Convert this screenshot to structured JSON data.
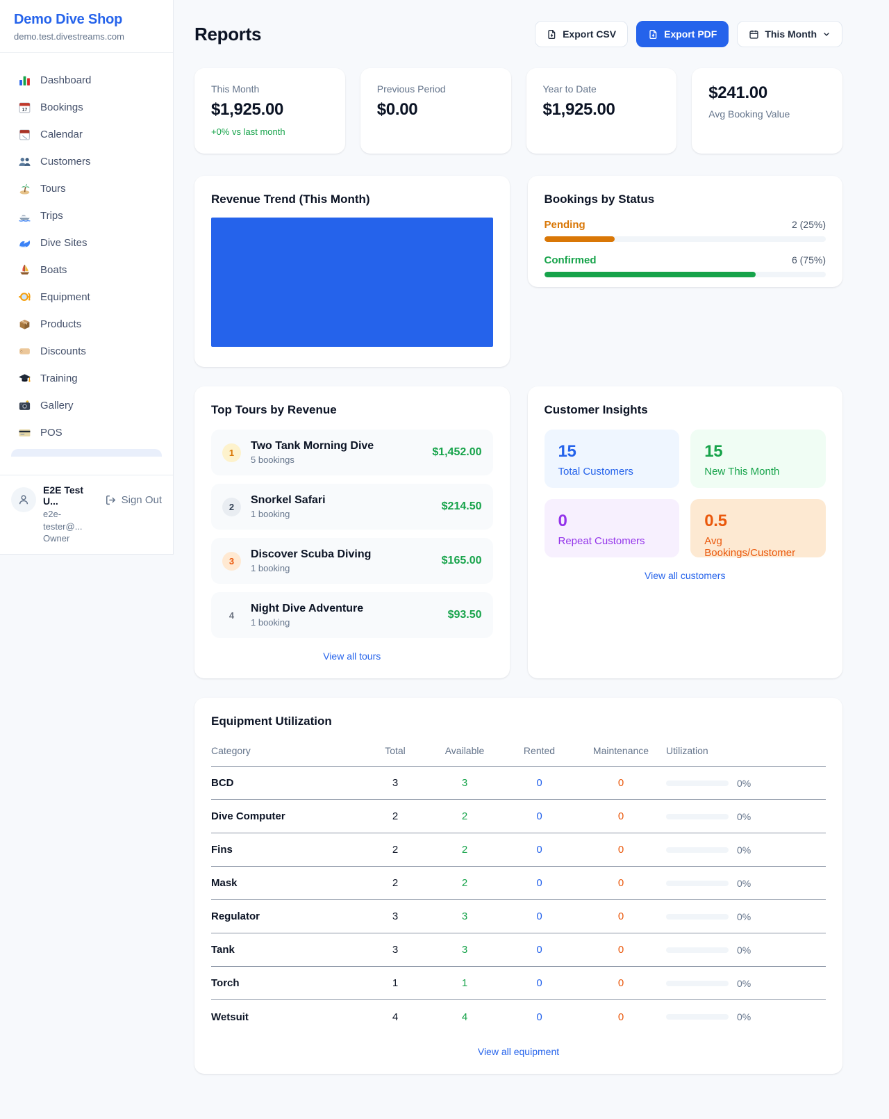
{
  "sidebar": {
    "brand": {
      "name": "Demo Dive Shop",
      "domain": "demo.test.divestreams.com"
    },
    "items": [
      {
        "icon": "bar-chart-icon",
        "label": "Dashboard"
      },
      {
        "icon": "calendar-date-icon",
        "label": "Bookings"
      },
      {
        "icon": "tear-calendar-icon",
        "label": "Calendar"
      },
      {
        "icon": "users-icon",
        "label": "Customers"
      },
      {
        "icon": "island-icon",
        "label": "Tours"
      },
      {
        "icon": "speedboat-icon",
        "label": "Trips"
      },
      {
        "icon": "wave-icon",
        "label": "Dive Sites"
      },
      {
        "icon": "sailboat-icon",
        "label": "Boats"
      },
      {
        "icon": "dive-mask-icon",
        "label": "Equipment"
      },
      {
        "icon": "package-icon",
        "label": "Products"
      },
      {
        "icon": "tag-icon",
        "label": "Discounts"
      },
      {
        "icon": "graduation-cap-icon",
        "label": "Training"
      },
      {
        "icon": "camera-icon",
        "label": "Gallery"
      },
      {
        "icon": "credit-card-icon",
        "label": "POS"
      }
    ],
    "user": {
      "name": "E2E Test U...",
      "email": "e2e-tester@...",
      "role": "Owner",
      "sign_out": "Sign Out"
    }
  },
  "header": {
    "title": "Reports",
    "export_csv": "Export CSV",
    "export_pdf": "Export PDF",
    "period": "This Month"
  },
  "stats": [
    {
      "label": "This Month",
      "value": "$1,925.00",
      "delta": "+0% vs last month"
    },
    {
      "label": "Previous Period",
      "value": "$0.00"
    },
    {
      "label": "Year to Date",
      "value": "$1,925.00"
    },
    {
      "label": "Avg Booking Value",
      "value": "$241.00"
    }
  ],
  "revenue_trend": {
    "title": "Revenue Trend (This Month)",
    "type": "bar",
    "bars_visible": 1,
    "bar_color": "#2563eb"
  },
  "bookings_by_status": {
    "title": "Bookings by Status",
    "rows": [
      {
        "label": "Pending",
        "count": "2 (25%)",
        "pct": 25,
        "color": "#d97706"
      },
      {
        "label": "Confirmed",
        "count": "6 (75%)",
        "pct": 75,
        "color": "#16a34a"
      }
    ]
  },
  "top_tours": {
    "title": "Top Tours by Revenue",
    "items": [
      {
        "rank": "1",
        "name": "Two Tank Morning Dive",
        "bookings": "5 bookings",
        "amount": "$1,452.00"
      },
      {
        "rank": "2",
        "name": "Snorkel Safari",
        "bookings": "1 booking",
        "amount": "$214.50"
      },
      {
        "rank": "3",
        "name": "Discover Scuba Diving",
        "bookings": "1 booking",
        "amount": "$165.00"
      },
      {
        "rank": "4",
        "name": "Night Dive Adventure",
        "bookings": "1 booking",
        "amount": "$93.50"
      }
    ],
    "view_all": "View all tours"
  },
  "customer_insights": {
    "title": "Customer Insights",
    "tiles": [
      {
        "value": "15",
        "label": "Total Customers",
        "accent": "#2563eb"
      },
      {
        "value": "15",
        "label": "New This Month",
        "accent": "#16a34a"
      },
      {
        "value": "0",
        "label": "Repeat Customers",
        "accent": "#9333ea"
      },
      {
        "value": "0.5",
        "label": "Avg Bookings/Customer",
        "accent": "#ea580c"
      }
    ],
    "view_all": "View all customers"
  },
  "equipment": {
    "title": "Equipment Utilization",
    "columns": [
      "Category",
      "Total",
      "Available",
      "Rented",
      "Maintenance",
      "Utilization"
    ],
    "rows": [
      {
        "category": "BCD",
        "total": "3",
        "available": "3",
        "rented": "0",
        "maintenance": "0",
        "utilization": "0%",
        "pct": 0
      },
      {
        "category": "Dive Computer",
        "total": "2",
        "available": "2",
        "rented": "0",
        "maintenance": "0",
        "utilization": "0%",
        "pct": 0
      },
      {
        "category": "Fins",
        "total": "2",
        "available": "2",
        "rented": "0",
        "maintenance": "0",
        "utilization": "0%",
        "pct": 0
      },
      {
        "category": "Mask",
        "total": "2",
        "available": "2",
        "rented": "0",
        "maintenance": "0",
        "utilization": "0%",
        "pct": 0
      },
      {
        "category": "Regulator",
        "total": "3",
        "available": "3",
        "rented": "0",
        "maintenance": "0",
        "utilization": "0%",
        "pct": 0
      },
      {
        "category": "Tank",
        "total": "3",
        "available": "3",
        "rented": "0",
        "maintenance": "0",
        "utilization": "0%",
        "pct": 0
      },
      {
        "category": "Torch",
        "total": "1",
        "available": "1",
        "rented": "0",
        "maintenance": "0",
        "utilization": "0%",
        "pct": 0
      },
      {
        "category": "Wetsuit",
        "total": "4",
        "available": "4",
        "rented": "0",
        "maintenance": "0",
        "utilization": "0%",
        "pct": 0
      }
    ],
    "view_all": "View all equipment"
  }
}
